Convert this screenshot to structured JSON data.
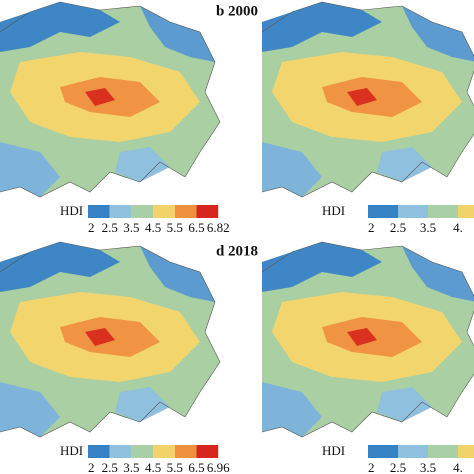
{
  "titles": [
    "b 2000",
    "d 2018"
  ],
  "legends": [
    {
      "label": "HDI",
      "ticks": [
        "2",
        "2.5",
        "3.5",
        "4.5",
        "5.5",
        "6.5",
        "6.82"
      ]
    },
    {
      "label": "HDI",
      "ticks": [
        "2",
        "2.5",
        "3.5",
        "4."
      ]
    },
    {
      "label": "HDI",
      "ticks": [
        "2",
        "2.5",
        "3.5",
        "4.5",
        "5.5",
        "6.5",
        "6.96"
      ]
    },
    {
      "label": "HDI",
      "ticks": [
        "2",
        "2.5",
        "3.5",
        "4."
      ]
    }
  ]
}
